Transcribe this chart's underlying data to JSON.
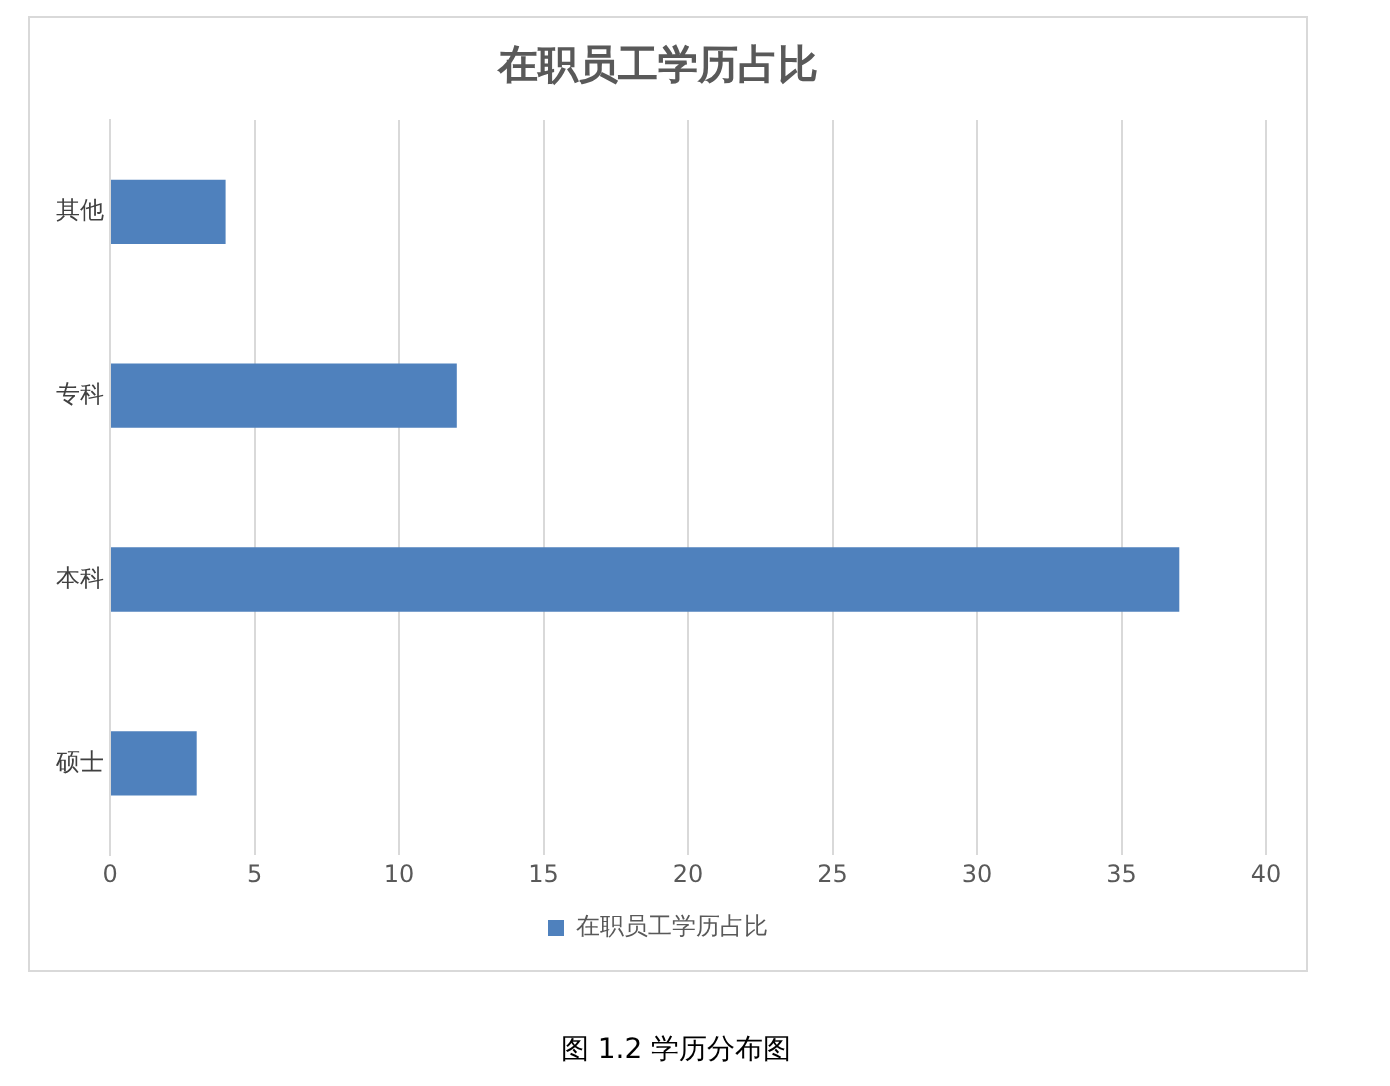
{
  "chart_data": {
    "type": "bar",
    "orientation": "horizontal",
    "title": "在职员工学历占比",
    "categories": [
      "其他",
      "专科",
      "本科",
      "硕士"
    ],
    "series": [
      {
        "name": "在职员工学历占比",
        "color": "#4f81bd",
        "values": [
          4,
          12,
          37,
          3
        ]
      }
    ],
    "xlim": [
      0,
      40
    ],
    "xticks": [
      0,
      5,
      10,
      15,
      20,
      25,
      30,
      35,
      40
    ],
    "grid": "x",
    "legend": "bottom",
    "annotations": [
      "图 1.2 学历分布图"
    ]
  }
}
